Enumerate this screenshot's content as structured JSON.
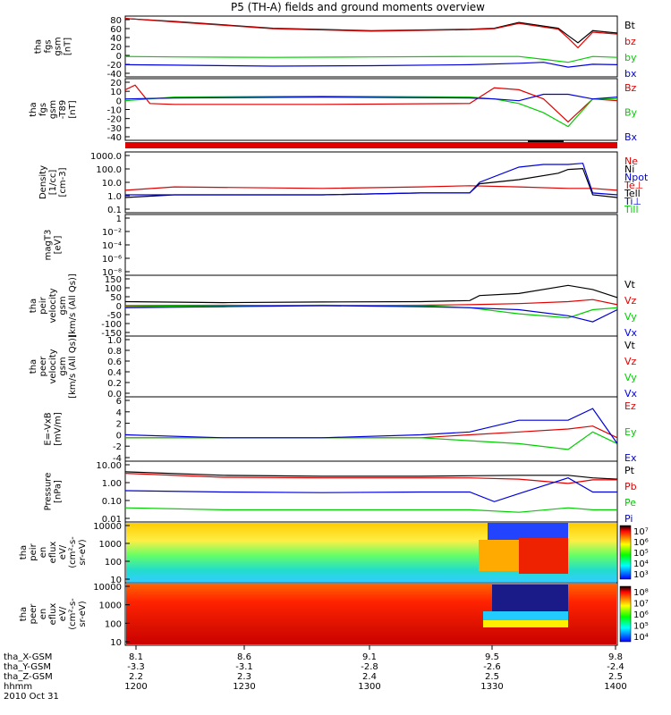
{
  "title": "P5 (TH-A) fields and ground moments overview",
  "colors": {
    "black": "#000000",
    "red": "#e00000",
    "green": "#00cc00",
    "blue": "#0000dd"
  },
  "chart_data": [
    {
      "type": "line",
      "ylabel": [
        "tha",
        "fgs",
        "gsm",
        "[nT]"
      ],
      "yticks": [
        80,
        60,
        40,
        20,
        0,
        -20,
        -40
      ],
      "ylim": [
        -40,
        85
      ],
      "legend": [
        {
          "name": "Bt",
          "color": "#000000"
        },
        {
          "name": "bz",
          "color": "#e00000"
        },
        {
          "name": "by",
          "color": "#00cc00"
        },
        {
          "name": "bx",
          "color": "#0000dd"
        }
      ],
      "series": [
        {
          "name": "Bt",
          "x": [
            0,
            10,
            30,
            50,
            70,
            75,
            80,
            88,
            90,
            92,
            95,
            100
          ],
          "values": [
            80,
            74,
            60,
            55,
            58,
            60,
            72,
            60,
            45,
            30,
            55,
            50
          ]
        },
        {
          "name": "bz",
          "x": [
            0,
            10,
            30,
            50,
            70,
            75,
            80,
            88,
            90,
            92,
            95,
            100
          ],
          "values": [
            80,
            73,
            59,
            54,
            57,
            59,
            70,
            58,
            40,
            20,
            52,
            48
          ]
        },
        {
          "name": "by",
          "x": [
            0,
            10,
            30,
            50,
            70,
            80,
            85,
            90,
            95,
            100
          ],
          "values": [
            2,
            1,
            0,
            1,
            2,
            2,
            -4,
            -10,
            2,
            0
          ]
        },
        {
          "name": "bx",
          "x": [
            0,
            10,
            30,
            50,
            70,
            80,
            85,
            90,
            95,
            100
          ],
          "values": [
            -15,
            -16,
            -18,
            -17,
            -15,
            -12,
            -10,
            -20,
            -14,
            -15
          ]
        }
      ]
    },
    {
      "type": "line",
      "ylabel": [
        "tha",
        "fgs",
        "gsm",
        "-T89"
      ],
      "ylabel2": "[nT]",
      "yticks": [
        20,
        10,
        0,
        -10,
        -20,
        -30,
        -40
      ],
      "ylim": [
        -45,
        22
      ],
      "legend": [
        {
          "name": "Bz",
          "color": "#e00000"
        },
        {
          "name": "By",
          "color": "#00cc00"
        },
        {
          "name": "Bx",
          "color": "#0000dd"
        }
      ],
      "series": [
        {
          "name": "Bz",
          "x": [
            0,
            2,
            5,
            10,
            40,
            70,
            75,
            80,
            85,
            90,
            95,
            100
          ],
          "values": [
            10,
            15,
            -5,
            -6,
            -6,
            -5,
            12,
            10,
            0,
            -25,
            0,
            -2
          ]
        },
        {
          "name": "By",
          "x": [
            0,
            10,
            40,
            70,
            75,
            80,
            85,
            90,
            95,
            100
          ],
          "values": [
            -2,
            2,
            3,
            2,
            0,
            -5,
            -15,
            -30,
            0,
            0
          ]
        },
        {
          "name": "Bx",
          "x": [
            0,
            10,
            40,
            70,
            75,
            80,
            85,
            90,
            95,
            100
          ],
          "values": [
            0,
            1,
            2,
            1,
            0,
            -2,
            5,
            5,
            0,
            2
          ]
        }
      ]
    },
    {
      "type": "line",
      "ylabel": [
        "Density",
        "[1/cc]",
        "[cm-3]"
      ],
      "yscale": "log",
      "yticks": [
        "1000.0",
        "100.0",
        "10.0",
        "1.0",
        "0.1"
      ],
      "ylim": [
        0.1,
        1000
      ],
      "legend": [
        {
          "name": "Ne",
          "color": "#e00000"
        },
        {
          "name": "Ni",
          "color": "#000000"
        },
        {
          "name": "Npot",
          "color": "#0000dd"
        },
        {
          "name": "Te⊥",
          "color": "#e00000"
        },
        {
          "name": "Tell",
          "color": "#000000"
        },
        {
          "name": "Ti⊥",
          "color": "#0000dd"
        },
        {
          "name": "Till",
          "color": "#00cc00"
        }
      ],
      "series": [
        {
          "name": "Ne",
          "x": [
            0,
            10,
            40,
            60,
            70,
            80,
            90,
            95,
            100
          ],
          "values": [
            3,
            5,
            4,
            5,
            6,
            5,
            4,
            4,
            3
          ]
        },
        {
          "name": "Ni",
          "x": [
            0,
            10,
            40,
            60,
            70,
            72,
            80,
            88,
            90,
            93,
            95,
            100
          ],
          "values": [
            1,
            1.5,
            1.5,
            2,
            2,
            8,
            15,
            40,
            70,
            80,
            1.5,
            1
          ]
        },
        {
          "name": "Npot",
          "x": [
            0,
            10,
            40,
            60,
            70,
            72,
            80,
            85,
            90,
            93,
            95,
            100
          ],
          "values": [
            1.5,
            1.5,
            1.5,
            2,
            2,
            10,
            100,
            150,
            150,
            180,
            2,
            1.5
          ]
        }
      ]
    },
    {
      "type": "line",
      "ylabel": [
        "magT3",
        "[eV]"
      ],
      "yscale": "log",
      "yticks": [
        "1",
        "10⁻²",
        "10⁻⁴",
        "10⁻⁶",
        "10⁻⁸"
      ],
      "ylim": [
        1e-09,
        1
      ]
    },
    {
      "type": "line",
      "ylabel": [
        "tha",
        "peir",
        "velocity",
        "gsm",
        "[km/s (All Qs)]"
      ],
      "yticks": [
        150,
        100,
        50,
        0,
        -50,
        -100,
        -150
      ],
      "ylim": [
        -150,
        150
      ],
      "legend": [
        {
          "name": "Vt",
          "color": "#000000"
        },
        {
          "name": "Vz",
          "color": "#e00000"
        },
        {
          "name": "Vy",
          "color": "#00cc00"
        },
        {
          "name": "Vx",
          "color": "#0000dd"
        }
      ],
      "series": [
        {
          "name": "Vt",
          "x": [
            0,
            20,
            40,
            60,
            70,
            72,
            80,
            90,
            95,
            100
          ],
          "values": [
            20,
            15,
            18,
            20,
            25,
            50,
            60,
            100,
            80,
            40
          ]
        },
        {
          "name": "Vz",
          "x": [
            0,
            20,
            40,
            60,
            70,
            80,
            90,
            95,
            100
          ],
          "values": [
            0,
            2,
            0,
            2,
            5,
            10,
            20,
            30,
            5
          ]
        },
        {
          "name": "Vy",
          "x": [
            0,
            20,
            40,
            60,
            70,
            80,
            90,
            95,
            100
          ],
          "values": [
            -5,
            0,
            2,
            0,
            -10,
            -40,
            -60,
            -20,
            -10
          ]
        },
        {
          "name": "Vx",
          "x": [
            0,
            20,
            40,
            60,
            70,
            80,
            90,
            95,
            100
          ],
          "values": [
            -10,
            -5,
            0,
            -5,
            -10,
            -20,
            -50,
            -80,
            -20
          ]
        }
      ]
    },
    {
      "type": "line",
      "ylabel": [
        "tha",
        "peer",
        "velocity",
        "gsm",
        "[km/s (All Qs)]"
      ],
      "yticks": [
        "1.0",
        "0.8",
        "0.6",
        "0.4",
        "0.2",
        "0.0"
      ],
      "ylim": [
        0,
        1
      ],
      "legend": [
        {
          "name": "Vt",
          "color": "#000000"
        },
        {
          "name": "Vz",
          "color": "#e00000"
        },
        {
          "name": "Vy",
          "color": "#00cc00"
        },
        {
          "name": "Vx",
          "color": "#0000dd"
        }
      ]
    },
    {
      "type": "line",
      "ylabel": [
        "E=-VxB",
        "[mV/m]"
      ],
      "yticks": [
        6,
        4,
        2,
        0,
        -2,
        -4
      ],
      "ylim": [
        -4,
        7
      ],
      "legend": [
        {
          "name": "Ez",
          "color": "#e00000"
        },
        {
          "name": "Ey",
          "color": "#00cc00"
        },
        {
          "name": "Ex",
          "color": "#0000dd"
        }
      ],
      "series": [
        {
          "name": "Ez",
          "x": [
            0,
            20,
            40,
            60,
            70,
            80,
            90,
            95,
            100
          ],
          "values": [
            0,
            0,
            0,
            0,
            0.5,
            1,
            1.5,
            2,
            0
          ]
        },
        {
          "name": "Ey",
          "x": [
            0,
            20,
            40,
            60,
            70,
            80,
            90,
            95,
            100
          ],
          "values": [
            0,
            0,
            0,
            0,
            -0.5,
            -1,
            -2,
            1,
            -1
          ]
        },
        {
          "name": "Ex",
          "x": [
            0,
            20,
            40,
            60,
            70,
            80,
            90,
            95,
            100
          ],
          "values": [
            0.5,
            0,
            0,
            0.5,
            1,
            3,
            3,
            5,
            -1
          ]
        }
      ]
    },
    {
      "type": "line",
      "ylabel": [
        "Pressure",
        "[nPa]"
      ],
      "yscale": "log",
      "yticks": [
        "10.00",
        "1.00",
        "0.10",
        "0.01"
      ],
      "ylim": [
        0.01,
        10
      ],
      "legend": [
        {
          "name": "Pt",
          "color": "#000000"
        },
        {
          "name": "Pb",
          "color": "#e00000"
        },
        {
          "name": "Pe",
          "color": "#00cc00"
        },
        {
          "name": "Pi",
          "color": "#0000dd"
        }
      ],
      "series": [
        {
          "name": "Pt",
          "x": [
            0,
            20,
            40,
            60,
            70,
            80,
            90,
            95,
            100
          ],
          "values": [
            3,
            2,
            1.8,
            1.8,
            1.9,
            2,
            2,
            1.5,
            1.3
          ]
        },
        {
          "name": "Pb",
          "x": [
            0,
            20,
            40,
            60,
            70,
            80,
            90,
            95,
            100
          ],
          "values": [
            2.5,
            1.6,
            1.5,
            1.5,
            1.5,
            1.3,
            0.8,
            1.2,
            1.2
          ]
        },
        {
          "name": "Pe",
          "x": [
            0,
            20,
            40,
            60,
            70,
            80,
            90,
            95,
            100
          ],
          "values": [
            0.05,
            0.04,
            0.04,
            0.04,
            0.04,
            0.03,
            0.05,
            0.04,
            0.04
          ]
        },
        {
          "name": "Pi",
          "x": [
            0,
            20,
            40,
            60,
            70,
            75,
            80,
            90,
            95,
            100
          ],
          "values": [
            0.35,
            0.3,
            0.28,
            0.3,
            0.3,
            0.1,
            0.25,
            1.5,
            0.3,
            0.3
          ]
        }
      ]
    },
    {
      "type": "heatmap",
      "ylabel": [
        "tha",
        "peir",
        "en",
        "eflux",
        "eV/",
        "(cm²-s-",
        "sr-eV)"
      ],
      "yscale": "log",
      "yticks": [
        "10000",
        "1000",
        "100",
        "10"
      ],
      "colorbar": [
        "10⁷",
        "10⁶",
        "10⁵",
        "10⁴",
        "10³"
      ]
    },
    {
      "type": "heatmap",
      "ylabel": [
        "tha",
        "peer",
        "en",
        "eflux",
        "eV/",
        "(cm²-s-",
        "sr-eV)"
      ],
      "yscale": "log",
      "yticks": [
        "10000",
        "1000",
        "100",
        "10"
      ],
      "colorbar": [
        "10⁸",
        "10⁷",
        "10⁶",
        "10⁵",
        "10⁴"
      ]
    }
  ],
  "xaxis": {
    "row_labels": [
      "tha_X-GSM",
      "tha_Y-GSM",
      "tha_Z-GSM",
      "hhmm",
      "2010 Oct 31"
    ],
    "ticks": [
      {
        "x": "8.1",
        "y": "-3.3",
        "z": "2.2",
        "hhmm": "1200"
      },
      {
        "x": "8.6",
        "y": "-3.1",
        "z": "2.3",
        "hhmm": "1230"
      },
      {
        "x": "9.1",
        "y": "-2.8",
        "z": "2.4",
        "hhmm": "1300"
      },
      {
        "x": "9.5",
        "y": "-2.6",
        "z": "2.5",
        "hhmm": "1330"
      },
      {
        "x": "9.8",
        "y": "-2.4",
        "z": "2.5",
        "hhmm": "1400"
      }
    ]
  }
}
